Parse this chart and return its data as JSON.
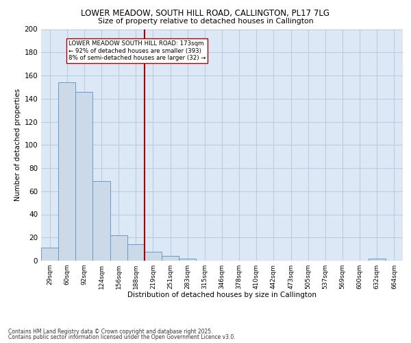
{
  "title1": "LOWER MEADOW, SOUTH HILL ROAD, CALLINGTON, PL17 7LG",
  "title2": "Size of property relative to detached houses in Callington",
  "xlabel": "Distribution of detached houses by size in Callington",
  "ylabel": "Number of detached properties",
  "bar_labels": [
    "29sqm",
    "60sqm",
    "92sqm",
    "124sqm",
    "156sqm",
    "188sqm",
    "219sqm",
    "251sqm",
    "283sqm",
    "315sqm",
    "346sqm",
    "378sqm",
    "410sqm",
    "442sqm",
    "473sqm",
    "505sqm",
    "537sqm",
    "569sqm",
    "600sqm",
    "632sqm",
    "664sqm"
  ],
  "bar_values": [
    11,
    154,
    146,
    69,
    22,
    14,
    8,
    4,
    2,
    0,
    0,
    0,
    0,
    0,
    0,
    0,
    0,
    0,
    0,
    2,
    0
  ],
  "bar_color": "#ccd9e8",
  "bar_edgecolor": "#6699cc",
  "vline_x": 5.5,
  "vline_color": "#aa0000",
  "annotation_text": "LOWER MEADOW SOUTH HILL ROAD: 173sqm\n← 92% of detached houses are smaller (393)\n8% of semi-detached houses are larger (32) →",
  "annotation_box_color": "#ffffff",
  "annotation_box_edgecolor": "#aa0000",
  "ylim": [
    0,
    200
  ],
  "yticks": [
    0,
    20,
    40,
    60,
    80,
    100,
    120,
    140,
    160,
    180,
    200
  ],
  "footer1": "Contains HM Land Registry data © Crown copyright and database right 2025.",
  "footer2": "Contains public sector information licensed under the Open Government Licence v3.0.",
  "bg_color": "#ffffff",
  "plot_bg_color": "#dce8f5",
  "grid_color": "#b8cede"
}
